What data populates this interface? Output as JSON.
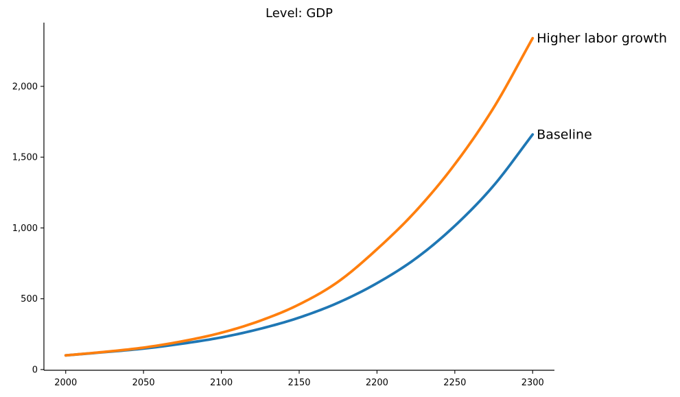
{
  "chart_data": {
    "type": "line",
    "title": "Level: GDP",
    "xlabel": "",
    "ylabel": "",
    "xlim": [
      1986,
      2314
    ],
    "ylim": [
      -5,
      2450
    ],
    "x_ticks": [
      2000,
      2050,
      2100,
      2150,
      2200,
      2250,
      2300
    ],
    "x_tick_labels": [
      "2000",
      "2050",
      "2100",
      "2150",
      "2200",
      "2250",
      "2300"
    ],
    "y_ticks": [
      0,
      500,
      1000,
      1500,
      2000
    ],
    "y_tick_labels": [
      "0",
      "500",
      "1,000",
      "1,500",
      "2,000"
    ],
    "grid": false,
    "legend": "none",
    "x": [
      2000,
      2025,
      2050,
      2075,
      2100,
      2125,
      2150,
      2175,
      2200,
      2225,
      2250,
      2275,
      2300
    ],
    "series": [
      {
        "name": "Baseline",
        "color": "#1f77b4",
        "values": [
          100,
          123,
          148,
          183,
          227,
          288,
          367,
          472,
          610,
          785,
          1015,
          1300,
          1660
        ]
      },
      {
        "name": "Higher labor growth",
        "color": "#ff7f0e",
        "values": [
          100,
          125,
          155,
          200,
          260,
          345,
          460,
          620,
          850,
          1120,
          1450,
          1850,
          2340
        ]
      }
    ]
  }
}
